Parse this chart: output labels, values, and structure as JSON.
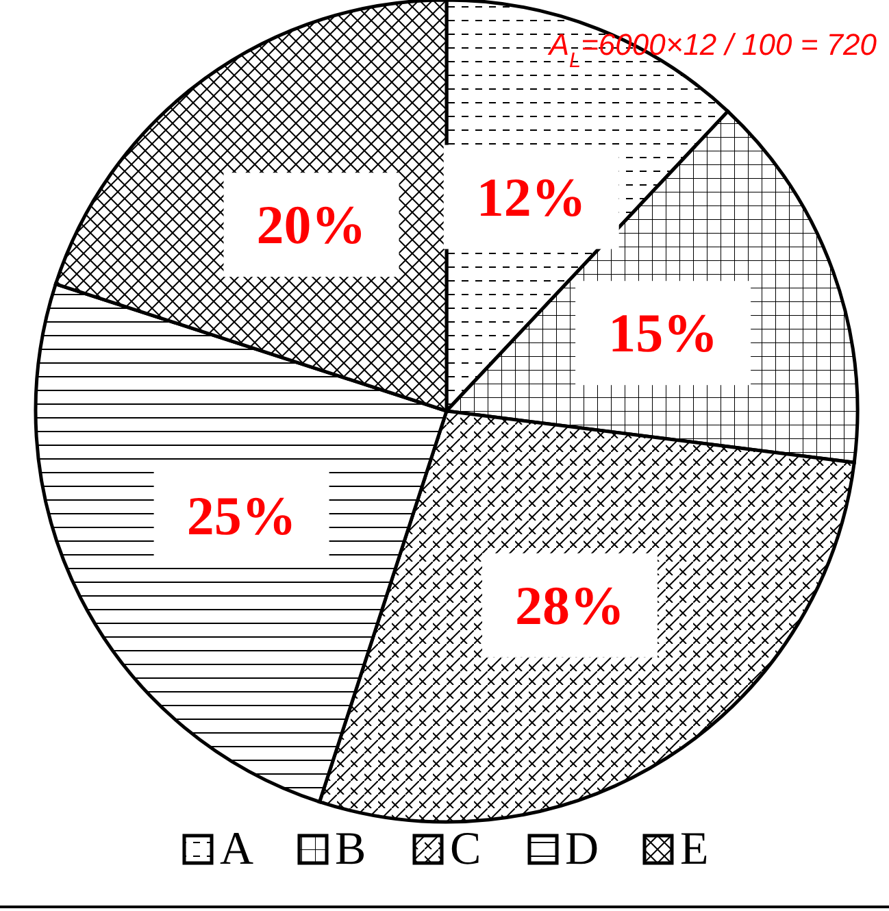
{
  "chart_data": {
    "type": "pie",
    "categories": [
      "A",
      "B",
      "C",
      "D",
      "E"
    ],
    "values": [
      12,
      15,
      28,
      25,
      20
    ],
    "colors": [
      "#000000",
      "#000000",
      "#000000",
      "#000000",
      "#000000"
    ],
    "value_labels": [
      "12%",
      "15%",
      "28%",
      "25%",
      "20%"
    ],
    "legend": "bottom",
    "annotations": [
      "A$_{L}$=6000×12 / 100 = 720"
    ]
  }
}
